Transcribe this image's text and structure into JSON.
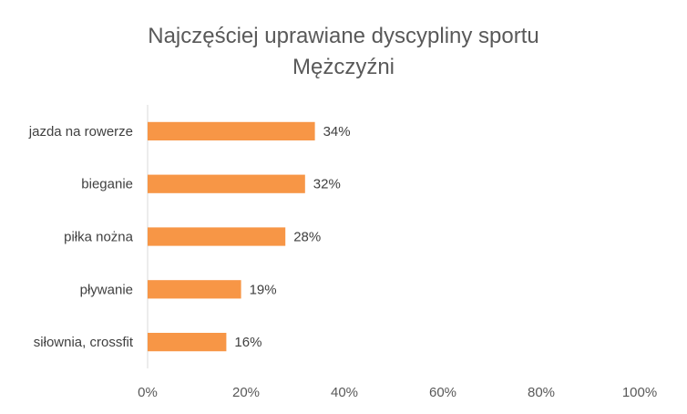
{
  "chart_data": {
    "type": "bar",
    "orientation": "horizontal",
    "title": "Najczęściej uprawiane dyscypliny sportu",
    "subtitle": "Mężczyźni",
    "categories": [
      "jazda na rowerze",
      "bieganie",
      "piłka nożna",
      "pływanie",
      "siłownia, crossfit"
    ],
    "values": [
      34,
      32,
      28,
      19,
      16
    ],
    "value_labels": [
      "34%",
      "32%",
      "28%",
      "19%",
      "16%"
    ],
    "xlim": [
      0,
      100
    ],
    "x_ticks": [
      0,
      20,
      40,
      60,
      80,
      100
    ],
    "x_tick_labels": [
      "0%",
      "20%",
      "40%",
      "60%",
      "80%",
      "100%"
    ],
    "xlabel": "",
    "ylabel": "",
    "grid": false,
    "legend": "none",
    "bar_color": "#F79646"
  }
}
